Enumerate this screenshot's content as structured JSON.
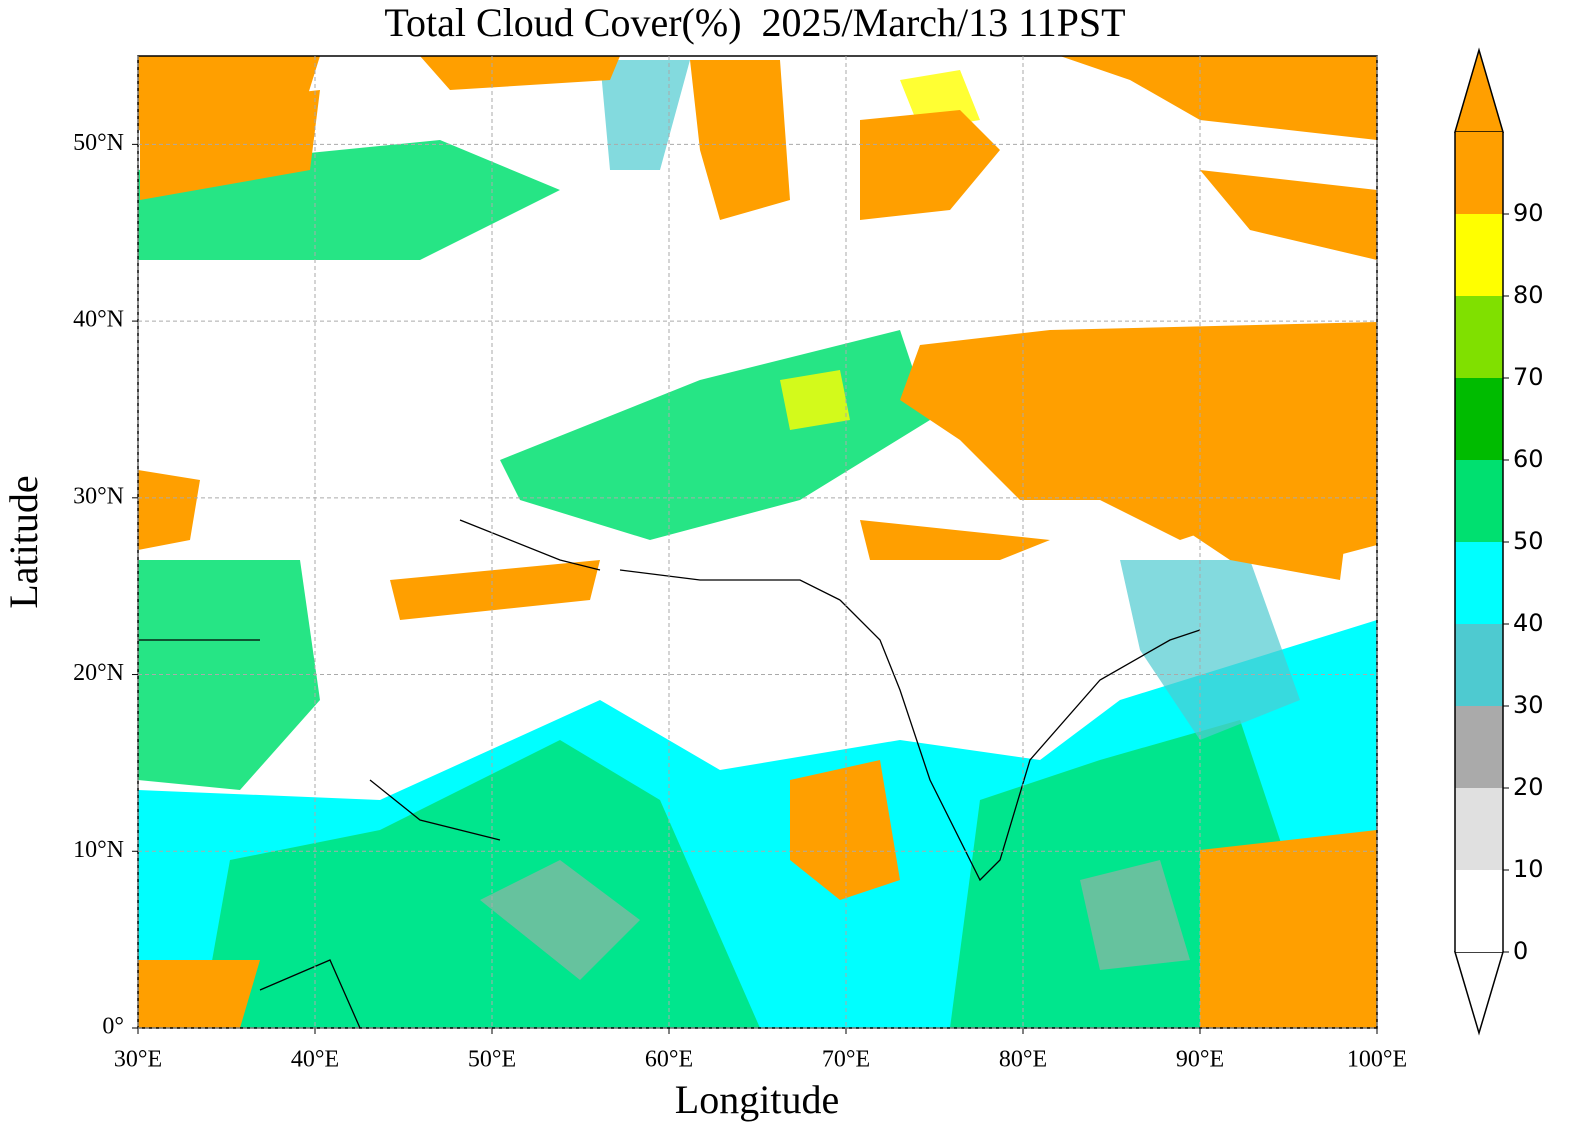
{
  "chart_data": {
    "type": "map",
    "title": "Total Cloud Cover(%)  2025/March/13 11PST",
    "xlabel": "Longitude",
    "ylabel": "Latitude",
    "xlim": [
      30,
      100
    ],
    "ylim": [
      0,
      55
    ],
    "xticks": [
      {
        "value": 30,
        "label": "30°E"
      },
      {
        "value": 40,
        "label": "40°E"
      },
      {
        "value": 50,
        "label": "50°E"
      },
      {
        "value": 60,
        "label": "60°E"
      },
      {
        "value": 70,
        "label": "70°E"
      },
      {
        "value": 80,
        "label": "80°E"
      },
      {
        "value": 90,
        "label": "90°E"
      },
      {
        "value": 100,
        "label": "100°E"
      }
    ],
    "yticks": [
      {
        "value": 0,
        "label": "0°"
      },
      {
        "value": 10,
        "label": "10°N"
      },
      {
        "value": 20,
        "label": "20°N"
      },
      {
        "value": 30,
        "label": "30°N"
      },
      {
        "value": 40,
        "label": "40°N"
      },
      {
        "value": 50,
        "label": "50°N"
      }
    ],
    "grid": true,
    "colorbar": {
      "lim": [
        0,
        100
      ],
      "ticks": [
        0,
        10,
        20,
        30,
        40,
        50,
        60,
        70,
        80,
        90
      ],
      "colors": [
        "#ffffff",
        "#e0e0e0",
        "#aaaaaa",
        "#4ecad0",
        "#00ffff",
        "#00e070",
        "#00bb00",
        "#80e000",
        "#ffff00",
        "#ff9f00"
      ]
    }
  }
}
